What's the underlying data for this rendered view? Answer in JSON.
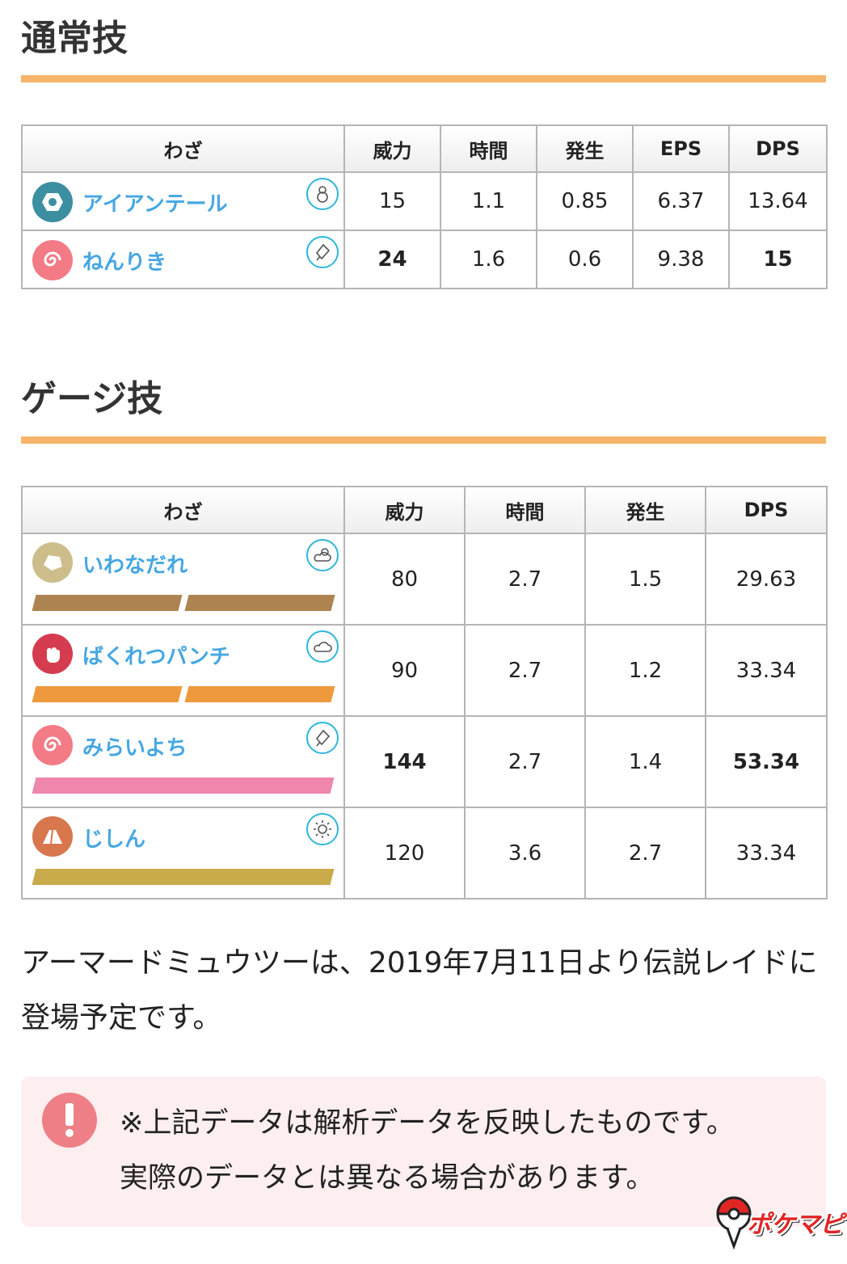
{
  "fast": {
    "title": "通常技",
    "headers": [
      "わざ",
      "威力",
      "時間",
      "発生",
      "EPS",
      "DPS"
    ],
    "rows": [
      {
        "name": "アイアンテール",
        "type_color": "#3c8fa0",
        "type_icon": "steel-icon",
        "weather_icon": "snow-icon",
        "power": "15",
        "duration": "1.1",
        "startup": "0.85",
        "eps": "6.37",
        "dps": "13.64"
      },
      {
        "name": "ねんりき",
        "type_color": "#f37b86",
        "type_icon": "psychic-icon",
        "weather_icon": "windy-icon",
        "power": "24",
        "duration": "1.6",
        "startup": "0.6",
        "eps": "9.38",
        "dps": "15"
      }
    ]
  },
  "charged": {
    "title": "ゲージ技",
    "headers": [
      "わざ",
      "威力",
      "時間",
      "発生",
      "DPS"
    ],
    "rows": [
      {
        "name": "いわなだれ",
        "type_color": "#cdbd8a",
        "type_icon": "rock-icon",
        "weather_icon": "partly-cloudy-icon",
        "bar_color": "#ad8451",
        "bars": 2,
        "power": "80",
        "duration": "2.7",
        "startup": "1.5",
        "dps": "29.63"
      },
      {
        "name": "ばくれつパンチ",
        "type_color": "#d63c4f",
        "type_icon": "fighting-icon",
        "weather_icon": "cloudy-icon",
        "bar_color": "#ee9a3c",
        "bars": 2,
        "power": "90",
        "duration": "2.7",
        "startup": "1.2",
        "dps": "33.34"
      },
      {
        "name": "みらいよち",
        "type_color": "#f37b86",
        "type_icon": "psychic-icon",
        "weather_icon": "windy-icon",
        "bar_color": "#ee86ae",
        "bars": 1,
        "power": "144",
        "duration": "2.7",
        "startup": "1.4",
        "dps": "53.34"
      },
      {
        "name": "じしん",
        "type_color": "#d8774d",
        "type_icon": "ground-icon",
        "weather_icon": "sunny-icon",
        "bar_color": "#c9ab4c",
        "bars": 1,
        "power": "120",
        "duration": "3.6",
        "startup": "2.7",
        "dps": "33.34"
      }
    ]
  },
  "highlight_color": "#d31f1f",
  "accent_color": "#f6b56a",
  "description": "アーマードミュウツーは、2019年7月11日より伝説レイドに登場予定です。",
  "notice": {
    "line1": "※上記データは解析データを反映したものです。",
    "line2": "実際のデータとは異なる場合があります。",
    "icon": "exclamation-icon"
  },
  "logo": {
    "text": "ポケマピ"
  }
}
